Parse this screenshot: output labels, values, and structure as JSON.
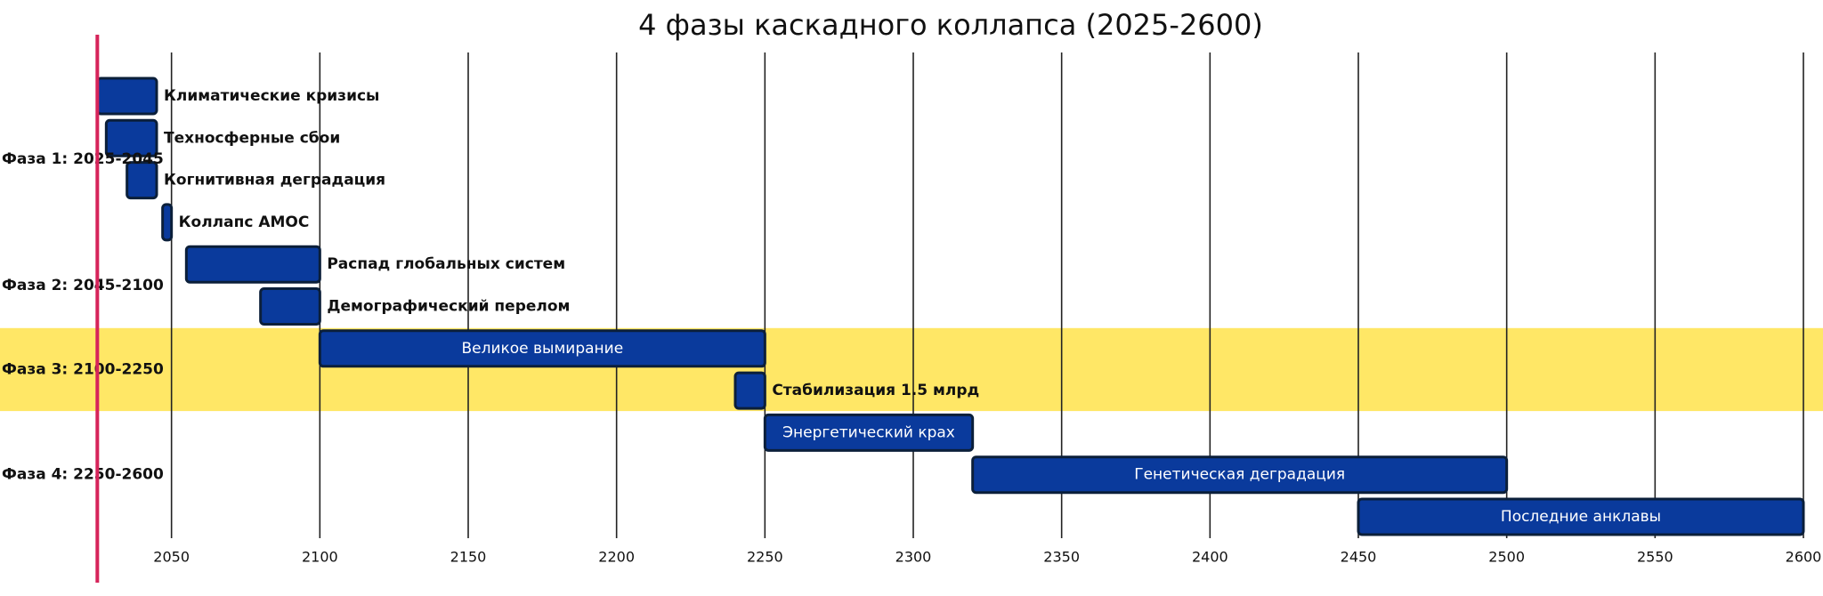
{
  "chart_data": {
    "type": "gantt",
    "title": "4 фазы каскадного коллапса (2025-2600)",
    "xlim": [
      2000,
      2606
    ],
    "xticks": [
      2050,
      2100,
      2150,
      2200,
      2250,
      2300,
      2350,
      2400,
      2450,
      2500,
      2550,
      2600
    ],
    "grid": true,
    "bar_color": "#0a3a9c",
    "marker": {
      "x": 2025,
      "color": "#d6245a"
    },
    "phases": [
      {
        "label": "Фаза 1: 2025-2045",
        "tasks": [
          {
            "name": "Климатические кризисы",
            "start": 2025,
            "end": 2045
          },
          {
            "name": "Техносферные сбои",
            "start": 2028,
            "end": 2045
          },
          {
            "name": "Когнитивная деградация",
            "start": 2035,
            "end": 2045
          },
          {
            "name": "Коллапс AMOC",
            "start": 2047,
            "end": 2050
          }
        ]
      },
      {
        "label": "Фаза 2: 2045-2100",
        "tasks": [
          {
            "name": "Распад глобальных систем",
            "start": 2055,
            "end": 2100
          },
          {
            "name": "Демографический перелом",
            "start": 2080,
            "end": 2100
          }
        ]
      },
      {
        "label": "Фаза 3: 2100-2250",
        "highlight": "#ffe766",
        "tasks": [
          {
            "name": "Великое вымирание",
            "start": 2100,
            "end": 2250
          },
          {
            "name": "Стабилизация 1.5 млрд",
            "start": 2240,
            "end": 2250
          }
        ]
      },
      {
        "label": "Фаза 4: 2250-2600",
        "tasks": [
          {
            "name": "Энергетический крах",
            "start": 2250,
            "end": 2320
          },
          {
            "name": "Генетическая деградация",
            "start": 2320,
            "end": 2500
          },
          {
            "name": "Последние анклавы",
            "start": 2450,
            "end": 2600
          }
        ]
      }
    ]
  }
}
